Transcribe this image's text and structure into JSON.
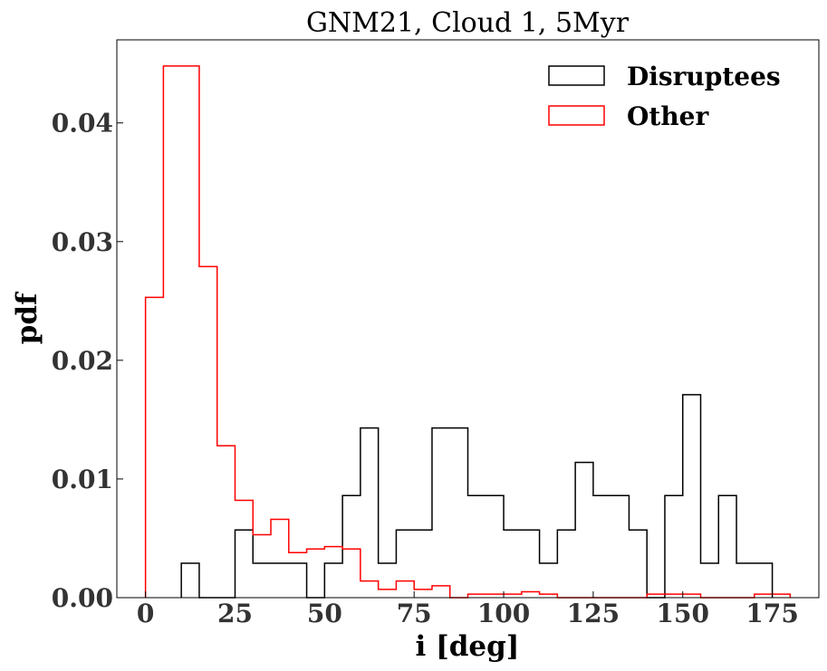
{
  "chart_data": {
    "type": "histogram-step",
    "title": "GNM21, Cloud 1, 5Myr",
    "xlabel": "i [deg]",
    "ylabel": "pdf",
    "xlim": [
      -8,
      188
    ],
    "ylim": [
      0,
      0.047
    ],
    "xticks": [
      0,
      25,
      50,
      75,
      100,
      125,
      150,
      175
    ],
    "yticks": [
      0.0,
      0.01,
      0.02,
      0.03,
      0.04
    ],
    "ytick_labels": [
      "0.00",
      "0.01",
      "0.02",
      "0.03",
      "0.04"
    ],
    "bin_width": 5,
    "legend_position": "top-right",
    "series": [
      {
        "name": "Disruptees",
        "color": "#000000",
        "bin_edges": [
          10,
          15,
          20,
          25,
          30,
          35,
          40,
          45,
          50,
          55,
          60,
          65,
          70,
          75,
          80,
          85,
          90,
          95,
          100,
          105,
          110,
          115,
          120,
          125,
          130,
          135,
          140,
          145,
          150,
          155,
          160,
          165,
          170,
          175
        ],
        "values": [
          0.0029,
          0,
          0,
          0.0057,
          0.0029,
          0.0029,
          0.0029,
          0,
          0.0029,
          0.0086,
          0.0143,
          0.0029,
          0.0057,
          0.0057,
          0.0143,
          0.0143,
          0.0086,
          0.0086,
          0.0057,
          0.0057,
          0.0029,
          0.0057,
          0.0114,
          0.0086,
          0.0086,
          0.0057,
          0,
          0.0086,
          0.0171,
          0.0029,
          0.0086,
          0.0029,
          0.0029
        ]
      },
      {
        "name": "Other",
        "color": "#ff0000",
        "bin_edges": [
          0,
          5,
          10,
          15,
          20,
          25,
          30,
          35,
          40,
          45,
          50,
          55,
          60,
          65,
          70,
          75,
          80,
          85,
          90,
          95,
          100,
          105,
          110,
          115,
          120,
          125,
          130,
          135,
          140,
          145,
          150,
          155,
          160,
          165,
          170,
          175,
          180
        ],
        "values": [
          0.0253,
          0.0448,
          0.0448,
          0.0279,
          0.0128,
          0.0082,
          0.0053,
          0.0066,
          0.0038,
          0.0041,
          0.0043,
          0.0041,
          0.0014,
          0.0007,
          0.0014,
          0.0007,
          0.001,
          0,
          0.0003,
          0.0003,
          0.0003,
          0.0005,
          0.0003,
          0,
          0,
          0,
          0,
          0,
          0.0003,
          0.0003,
          0.0003,
          0,
          0,
          0,
          0.0003,
          0.0003
        ]
      }
    ]
  }
}
